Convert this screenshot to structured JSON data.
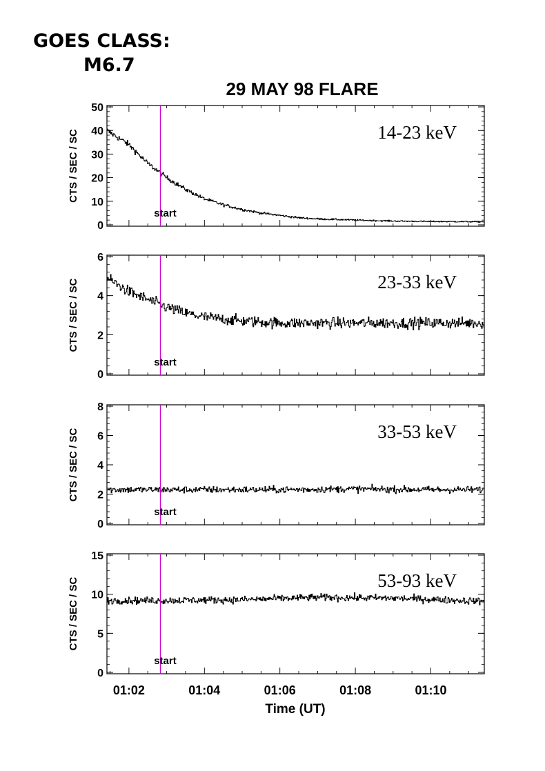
{
  "header": {
    "goes_label": "GOES CLASS:",
    "goes_class": "M6.7"
  },
  "chart_data": {
    "type": "line",
    "title": "29 MAY 98 FLARE",
    "xlabel": "Time (UT)",
    "x_unit": "minutes UT",
    "xlim": [
      "01:01:25",
      "01:11:25"
    ],
    "x_tick_labels": [
      "01:02",
      "01:04",
      "01:06",
      "01:08",
      "01:10"
    ],
    "x_tick_values": [
      "01:02",
      "01:04",
      "01:06",
      "01:08",
      "01:10"
    ],
    "marker": {
      "label": "start",
      "time": "01:02:50",
      "color": "#cc00cc"
    },
    "panels": [
      {
        "band": "14-23 keV",
        "ylabel": "CTS / SEC / SC",
        "ylim": [
          0,
          50
        ],
        "y_ticks": [
          0,
          10,
          20,
          30,
          40,
          50
        ],
        "series": {
          "times": [
            "01:01:25",
            "01:02:00",
            "01:02:30",
            "01:03:00",
            "01:03:30",
            "01:04:00",
            "01:04:30",
            "01:05:00",
            "01:05:30",
            "01:06:00",
            "01:06:30",
            "01:07:00",
            "01:08:00",
            "01:09:00",
            "01:10:00",
            "01:11:25"
          ],
          "values": [
            40,
            34,
            26,
            20,
            15,
            11,
            8.5,
            6.5,
            5,
            4,
            3,
            2.5,
            2,
            1.6,
            1.4,
            1.3
          ]
        }
      },
      {
        "band": "23-33 keV",
        "ylabel": "CTS / SEC / SC",
        "ylim": [
          0,
          6
        ],
        "y_ticks": [
          0,
          2,
          4,
          6
        ],
        "series": {
          "times": [
            "01:01:25",
            "01:02:00",
            "01:02:30",
            "01:03:00",
            "01:03:30",
            "01:04:00",
            "01:05:00",
            "01:06:00",
            "01:07:00",
            "01:08:00",
            "01:09:00",
            "01:10:00",
            "01:11:25"
          ],
          "values": [
            4.9,
            4.2,
            3.8,
            3.4,
            3.1,
            2.9,
            2.7,
            2.6,
            2.6,
            2.6,
            2.6,
            2.6,
            2.6
          ]
        }
      },
      {
        "band": "33-53 keV",
        "ylabel": "CTS / SEC / SC",
        "ylim": [
          0,
          8
        ],
        "y_ticks": [
          0,
          2,
          4,
          6,
          8
        ],
        "series": {
          "times": [
            "01:01:25",
            "01:04:00",
            "01:06:00",
            "01:08:00",
            "01:10:00",
            "01:11:25"
          ],
          "values": [
            2.3,
            2.3,
            2.3,
            2.35,
            2.3,
            2.3
          ]
        }
      },
      {
        "band": "53-93 keV",
        "ylabel": "CTS / SEC / SC",
        "ylim": [
          0,
          15
        ],
        "y_ticks": [
          0,
          5,
          10,
          15
        ],
        "series": {
          "times": [
            "01:01:25",
            "01:03:00",
            "01:05:00",
            "01:07:00",
            "01:09:00",
            "01:11:25"
          ],
          "values": [
            9.2,
            9.2,
            9.3,
            9.6,
            9.5,
            9.1
          ]
        }
      }
    ],
    "colors": {
      "data": "#000000",
      "axes": "#000000",
      "marker": "#cc00cc"
    }
  }
}
